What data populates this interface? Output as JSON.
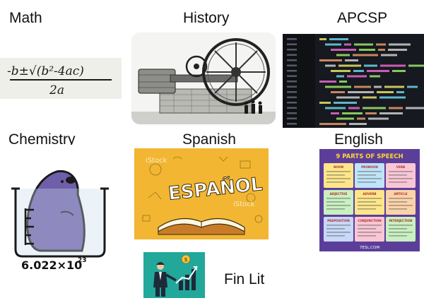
{
  "subjects": [
    {
      "id": "math",
      "label": "Math",
      "image_text": "-b±√(b²-4ac)",
      "image_text2": "2a"
    },
    {
      "id": "history",
      "label": "History"
    },
    {
      "id": "apcsp",
      "label": "APCSP"
    },
    {
      "id": "chemistry",
      "label": "Chemistry",
      "image_text": "6.022×10",
      "image_exp": "23"
    },
    {
      "id": "spanish",
      "label": "Spanish",
      "image_text": "ESPAÑOL",
      "watermark": "iStock"
    },
    {
      "id": "english",
      "label": "English",
      "image_text": "9 PARTS OF SPEECH",
      "footer": "7ESL.COM",
      "parts": [
        "NOUN",
        "PRONOUN",
        "VERB",
        "ADJECTIVE",
        "ADVERB",
        "ARTICLE",
        "PREPOSITION",
        "CONJUNCTION",
        "INTERJECTION"
      ]
    },
    {
      "id": "finlit",
      "label": "Fin Lit",
      "image_text": "$"
    }
  ],
  "colors": {
    "spanish_bg": "#f2b632",
    "finlit_bg": "#21a89a",
    "code_bg": "#1a1d24",
    "mole": "#6f5fa8"
  }
}
